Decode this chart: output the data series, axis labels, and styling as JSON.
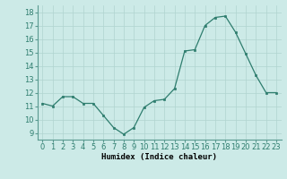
{
  "x": [
    0,
    1,
    2,
    3,
    4,
    5,
    6,
    7,
    8,
    9,
    10,
    11,
    12,
    13,
    14,
    15,
    16,
    17,
    18,
    19,
    20,
    21,
    22,
    23
  ],
  "y": [
    11.2,
    11.0,
    11.7,
    11.7,
    11.2,
    11.2,
    10.3,
    9.4,
    8.9,
    9.4,
    10.9,
    11.4,
    11.5,
    12.3,
    15.1,
    15.2,
    17.0,
    17.6,
    17.7,
    16.5,
    14.9,
    13.3,
    12.0,
    12.0
  ],
  "line_color": "#2e7d6e",
  "marker_color": "#2e7d6e",
  "bg_color": "#cceae7",
  "grid_color": "#b0d4d0",
  "xlabel": "Humidex (Indice chaleur)",
  "ylim": [
    8.5,
    18.5
  ],
  "xlim": [
    -0.5,
    23.5
  ],
  "yticks": [
    9,
    10,
    11,
    12,
    13,
    14,
    15,
    16,
    17,
    18
  ],
  "xticks": [
    0,
    1,
    2,
    3,
    4,
    5,
    6,
    7,
    8,
    9,
    10,
    11,
    12,
    13,
    14,
    15,
    16,
    17,
    18,
    19,
    20,
    21,
    22,
    23
  ],
  "xtick_labels": [
    "0",
    "1",
    "2",
    "3",
    "4",
    "5",
    "6",
    "7",
    "8",
    "9",
    "10",
    "11",
    "12",
    "13",
    "14",
    "15",
    "16",
    "17",
    "18",
    "19",
    "20",
    "21",
    "22",
    "23"
  ],
  "label_fontsize": 6.5,
  "tick_fontsize": 6.0
}
